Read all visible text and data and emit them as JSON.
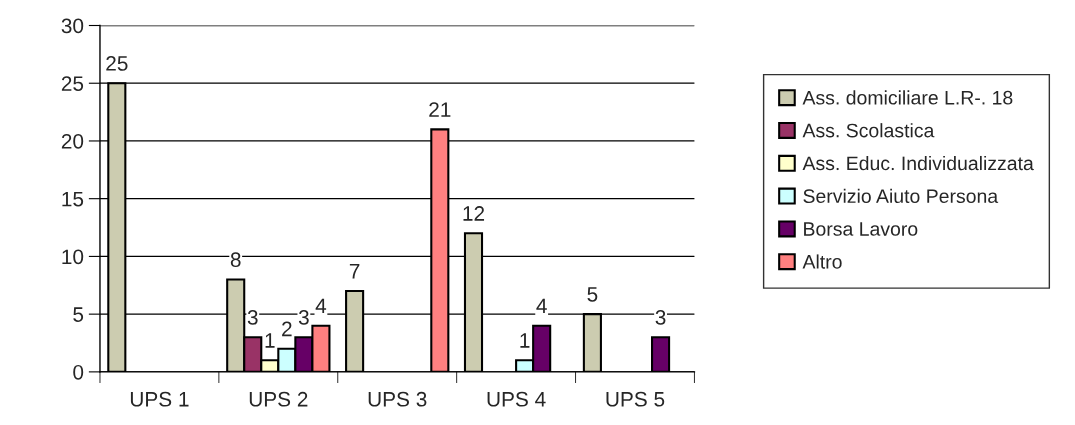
{
  "chart_data": {
    "type": "bar",
    "categories": [
      "UPS 1",
      "UPS 2",
      "UPS 3",
      "UPS 4",
      "UPS 5"
    ],
    "series": [
      {
        "name": "Ass. domiciliare L.R-. 18",
        "color": "#ccccb0",
        "values": [
          25,
          8,
          7,
          12,
          5
        ]
      },
      {
        "name": "Ass. Scolastica",
        "color": "#993366",
        "values": [
          null,
          3,
          null,
          null,
          null
        ]
      },
      {
        "name": "Ass. Educ. Individualizzata",
        "color": "#ffffcc",
        "values": [
          null,
          1,
          null,
          null,
          null
        ]
      },
      {
        "name": "Servizio Aiuto Persona",
        "color": "#ccffff",
        "values": [
          null,
          2,
          null,
          1,
          null
        ]
      },
      {
        "name": "Borsa Lavoro",
        "color": "#660066",
        "values": [
          null,
          3,
          null,
          4,
          3
        ]
      },
      {
        "name": "Altro",
        "color": "#ff8080",
        "values": [
          null,
          4,
          21,
          null,
          null
        ]
      }
    ],
    "ylim": [
      0,
      30
    ],
    "yticks": [
      0,
      5,
      10,
      15,
      20,
      25,
      30
    ],
    "grid": "y",
    "legend": "right",
    "data_labels": true
  }
}
